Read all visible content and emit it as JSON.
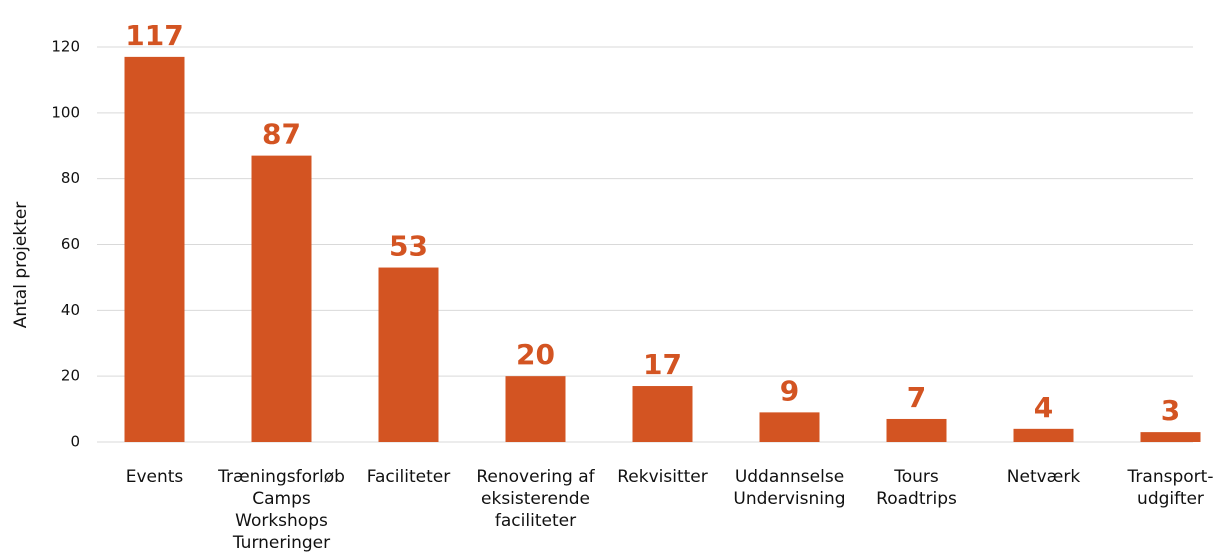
{
  "chart_data": {
    "type": "bar",
    "y_label": "Antal projekter",
    "categories": [
      "Events",
      "Træningsforløb\nCamps\nWorkshops\nTurneringer",
      "Faciliteter",
      "Renovering af\neksisterende\nfaciliteter",
      "Rekvisitter",
      "Uddannselse\nUndervisning",
      "Tours\nRoadtrips",
      "Netværk",
      "Transport-\nudgifter"
    ],
    "values": [
      117,
      87,
      53,
      20,
      17,
      9,
      7,
      4,
      3
    ],
    "color": "#d35422",
    "ylim": [
      0,
      120
    ],
    "yticks": [
      0,
      20,
      40,
      60,
      80,
      100,
      120
    ],
    "grid": true
  }
}
